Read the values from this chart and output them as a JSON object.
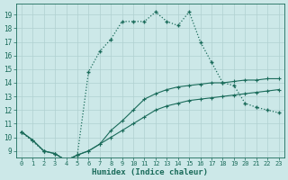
{
  "xlabel": "Humidex (Indice chaleur)",
  "bg_color": "#cce8e8",
  "grid_color": "#b0d0d0",
  "line_color": "#1a6b5a",
  "xlim": [
    -0.5,
    23.5
  ],
  "ylim": [
    8.5,
    19.8
  ],
  "xticks": [
    0,
    1,
    2,
    3,
    4,
    5,
    6,
    7,
    8,
    9,
    10,
    11,
    12,
    13,
    14,
    15,
    16,
    17,
    18,
    19,
    20,
    21,
    22,
    23
  ],
  "yticks": [
    9,
    10,
    11,
    12,
    13,
    14,
    15,
    16,
    17,
    18,
    19
  ],
  "series1_x": [
    0,
    1,
    2,
    3,
    4,
    5,
    6,
    7,
    8,
    9,
    10,
    11,
    12,
    13,
    14,
    15,
    16,
    17,
    18,
    19,
    20,
    21,
    22,
    23
  ],
  "series1_y": [
    10.4,
    9.8,
    9.0,
    8.8,
    8.3,
    8.7,
    9.0,
    9.5,
    10.0,
    10.5,
    11.0,
    11.5,
    12.0,
    12.3,
    12.5,
    12.7,
    12.8,
    12.9,
    13.0,
    13.1,
    13.2,
    13.3,
    13.4,
    13.5
  ],
  "series2_x": [
    0,
    1,
    2,
    3,
    4,
    5,
    6,
    7,
    8,
    9,
    10,
    11,
    12,
    13,
    14,
    15,
    16,
    17,
    18,
    19,
    20,
    21,
    22,
    23
  ],
  "series2_y": [
    10.4,
    9.8,
    9.0,
    8.8,
    8.3,
    8.7,
    9.0,
    9.5,
    10.5,
    11.2,
    12.0,
    12.8,
    13.2,
    13.5,
    13.7,
    13.8,
    13.9,
    14.0,
    14.0,
    14.1,
    14.2,
    14.2,
    14.3,
    14.3
  ],
  "series3_x": [
    0,
    2,
    3,
    4,
    5,
    6,
    7,
    8,
    9,
    10,
    11,
    12,
    13,
    14,
    15,
    16,
    17,
    18,
    19,
    20,
    21,
    22,
    23
  ],
  "series3_y": [
    10.4,
    9.0,
    8.8,
    8.3,
    8.7,
    14.8,
    16.3,
    17.2,
    18.5,
    18.5,
    18.5,
    19.2,
    18.5,
    18.2,
    19.2,
    17.0,
    15.5,
    14.0,
    13.8,
    12.5,
    12.2,
    12.0,
    11.8
  ]
}
